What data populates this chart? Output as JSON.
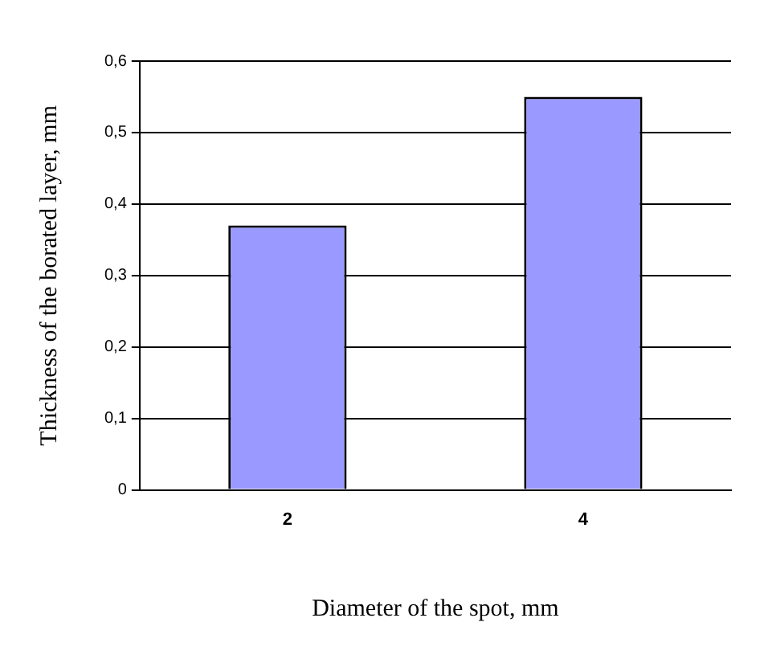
{
  "chart_data": {
    "type": "bar",
    "xlabel": "Diameter of the spot, mm",
    "ylabel": "Thickness of the borated layer, mm",
    "categories": [
      "2",
      "4"
    ],
    "values": [
      0.37,
      0.55
    ],
    "color": "#9999ff",
    "ylim": [
      0,
      0.6
    ],
    "yticks": [
      {
        "value": 0,
        "label": "0"
      },
      {
        "value": 0.1,
        "label": "0,1"
      },
      {
        "value": 0.2,
        "label": "0,2"
      },
      {
        "value": 0.3,
        "label": "0,3"
      },
      {
        "value": 0.4,
        "label": "0,4"
      },
      {
        "value": 0.5,
        "label": "0,5"
      },
      {
        "value": 0.6,
        "label": "0,6"
      }
    ],
    "grid": "y"
  }
}
